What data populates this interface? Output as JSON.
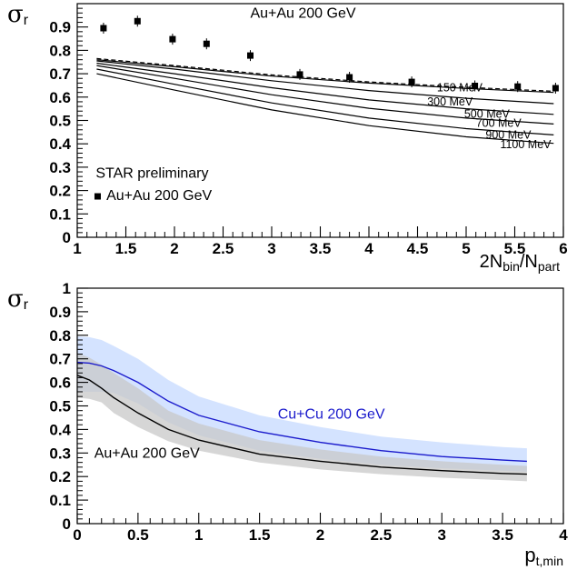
{
  "chart_data": [
    {
      "type": "scatter",
      "panel": "top",
      "title": "Au+Au 200 GeV",
      "xlabel": "2N_bin/N_part",
      "xlabel_main": "2N",
      "xlabel_sub1": "bin",
      "xlabel_mid": "/N",
      "xlabel_sub2": "part",
      "ylabel": "σ_r",
      "ylabel_main": "σ",
      "ylabel_sub": "r",
      "xlim": [
        1,
        6
      ],
      "ylim": [
        0,
        1
      ],
      "xticks": [
        "1",
        "1.5",
        "2",
        "2.5",
        "3",
        "3.5",
        "4",
        "4.5",
        "5",
        "5.5",
        "6"
      ],
      "yticks": [
        "0",
        "0.1",
        "0.2",
        "0.3",
        "0.4",
        "0.5",
        "0.6",
        "0.7",
        "0.8",
        "0.9"
      ],
      "grid": false,
      "legend": {
        "placement": "lower-left",
        "header": "STAR preliminary",
        "entry": "Au+Au 200 GeV"
      },
      "series": [
        {
          "name": "Au+Au 200 GeV",
          "kind": "points",
          "x": [
            1.27,
            1.62,
            1.98,
            2.33,
            2.78,
            3.29,
            3.8,
            4.44,
            5.09,
            5.53,
            5.92
          ],
          "y": [
            0.895,
            0.925,
            0.848,
            0.828,
            0.778,
            0.697,
            0.685,
            0.665,
            0.648,
            0.645,
            0.638
          ]
        },
        {
          "name": "150 MeV",
          "kind": "line",
          "dashed": true,
          "x": [
            1.2,
            2,
            3,
            4,
            5,
            5.9
          ],
          "y": [
            0.765,
            0.735,
            0.695,
            0.665,
            0.642,
            0.625
          ]
        },
        {
          "name": "150 MeV",
          "kind": "line",
          "dashed": false,
          "x": [
            1.2,
            2,
            3,
            4,
            5,
            5.9
          ],
          "y": [
            0.76,
            0.73,
            0.69,
            0.66,
            0.637,
            0.62
          ]
        },
        {
          "name": "300 MeV",
          "kind": "line",
          "dashed": false,
          "x": [
            1.2,
            2,
            3,
            4,
            5,
            5.9
          ],
          "y": [
            0.755,
            0.72,
            0.67,
            0.628,
            0.595,
            0.572
          ]
        },
        {
          "name": "500 MeV",
          "kind": "line",
          "dashed": false,
          "x": [
            1.2,
            2,
            3,
            4,
            5,
            5.9
          ],
          "y": [
            0.745,
            0.7,
            0.64,
            0.588,
            0.55,
            0.526
          ]
        },
        {
          "name": "700 MeV",
          "kind": "line",
          "dashed": false,
          "x": [
            1.2,
            2,
            3,
            4,
            5,
            5.9
          ],
          "y": [
            0.735,
            0.68,
            0.61,
            0.552,
            0.51,
            0.485
          ]
        },
        {
          "name": "900 MeV",
          "kind": "line",
          "dashed": false,
          "x": [
            1.2,
            2,
            3,
            4,
            5,
            5.9
          ],
          "y": [
            0.72,
            0.655,
            0.575,
            0.51,
            0.465,
            0.438
          ]
        },
        {
          "name": "1100 MeV",
          "kind": "line",
          "dashed": false,
          "x": [
            1.2,
            2,
            3,
            4,
            5,
            5.9
          ],
          "y": [
            0.7,
            0.63,
            0.545,
            0.478,
            0.43,
            0.402
          ]
        }
      ],
      "curve_labels": [
        {
          "text": "150 MeV",
          "x": 4.7,
          "y": 0.625
        },
        {
          "text": "300 MeV",
          "x": 4.6,
          "y": 0.565
        },
        {
          "text": "500 MeV",
          "x": 4.98,
          "y": 0.512
        },
        {
          "text": "700 MeV",
          "x": 5.1,
          "y": 0.472
        },
        {
          "text": "900 MeV",
          "x": 5.2,
          "y": 0.422
        },
        {
          "text": "1100 MeV",
          "x": 5.35,
          "y": 0.382
        }
      ]
    },
    {
      "type": "line",
      "panel": "bottom",
      "xlabel": "p_t,min",
      "xlabel_main": "p",
      "xlabel_sub": "t,min",
      "ylabel": "σ_r",
      "ylabel_main": "σ",
      "ylabel_sub": "r",
      "xlim": [
        0,
        4
      ],
      "ylim": [
        0,
        1
      ],
      "xticks": [
        "0",
        "0.5",
        "1",
        "1.5",
        "2",
        "2.5",
        "3",
        "3.5",
        "4"
      ],
      "yticks": [
        "0",
        "0.1",
        "0.2",
        "0.3",
        "0.4",
        "0.5",
        "0.6",
        "0.7",
        "0.8",
        "0.9",
        "1"
      ],
      "grid": false,
      "series": [
        {
          "name": "Cu+Cu 200 GeV",
          "label": "Cu+Cu 200 GeV",
          "color": "#1a1acc",
          "band_color": "#cfe0ff",
          "x": [
            0,
            0.1,
            0.2,
            0.3,
            0.5,
            0.75,
            1.0,
            1.5,
            2.0,
            2.5,
            3.0,
            3.5,
            3.7
          ],
          "y": [
            0.685,
            0.682,
            0.67,
            0.65,
            0.6,
            0.52,
            0.46,
            0.39,
            0.345,
            0.31,
            0.285,
            0.27,
            0.265
          ],
          "band_lo": [
            0.56,
            0.56,
            0.56,
            0.555,
            0.51,
            0.43,
            0.375,
            0.31,
            0.275,
            0.25,
            0.235,
            0.225,
            0.22
          ],
          "band_hi": [
            0.795,
            0.792,
            0.78,
            0.755,
            0.7,
            0.61,
            0.54,
            0.46,
            0.41,
            0.37,
            0.345,
            0.325,
            0.32
          ]
        },
        {
          "name": "Au+Au 200 GeV",
          "label": "Au+Au 200 GeV",
          "color": "#000000",
          "band_color": "#c8c8c8",
          "x": [
            0,
            0.1,
            0.2,
            0.3,
            0.5,
            0.75,
            1.0,
            1.5,
            2.0,
            2.5,
            3.0,
            3.5,
            3.7
          ],
          "y": [
            0.63,
            0.61,
            0.575,
            0.535,
            0.47,
            0.4,
            0.355,
            0.295,
            0.265,
            0.24,
            0.225,
            0.213,
            0.21
          ],
          "band_lo": [
            0.535,
            0.53,
            0.515,
            0.47,
            0.41,
            0.35,
            0.31,
            0.26,
            0.23,
            0.21,
            0.195,
            0.185,
            0.18
          ],
          "band_hi": [
            0.725,
            0.705,
            0.675,
            0.64,
            0.575,
            0.48,
            0.425,
            0.355,
            0.315,
            0.285,
            0.265,
            0.25,
            0.245
          ]
        }
      ],
      "annotations": [
        {
          "text": "Cu+Cu 200 GeV",
          "x": 1.65,
          "y": 0.445,
          "color": "#1a1acc"
        },
        {
          "text": "Au+Au 200 GeV",
          "x": 0.14,
          "y": 0.28,
          "color": "#000000"
        }
      ]
    }
  ]
}
